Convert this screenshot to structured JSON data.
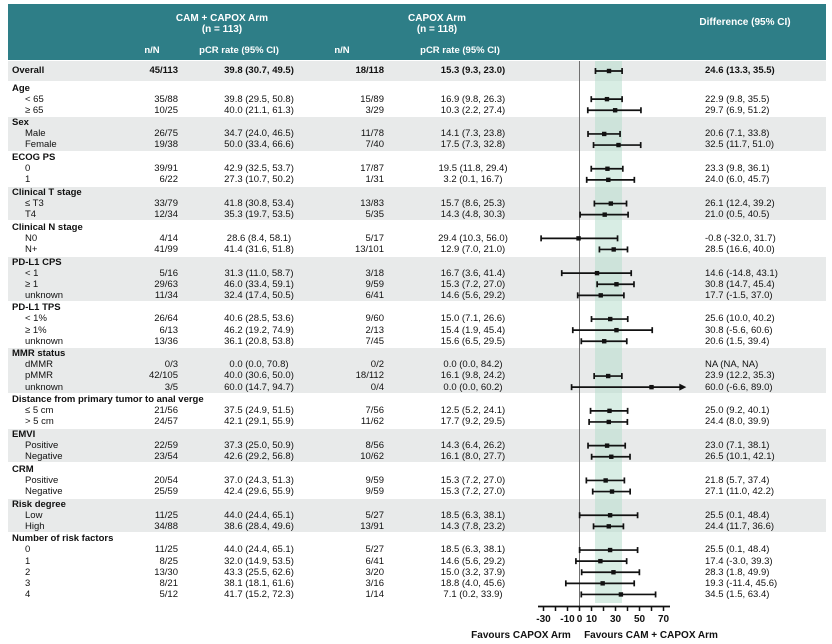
{
  "header": {
    "arm1_title": "CAM + CAPOX Arm",
    "arm1_n": "(n = 113)",
    "arm2_title": "CAPOX Arm",
    "arm2_n": "(n = 118)",
    "diff_title": "Difference (95% CI)",
    "nn_label": "n/N",
    "pcr_label": "pCR rate (95% CI)"
  },
  "colors": {
    "header_teal": "#2e7e87",
    "row_shade": "#e8eaea",
    "overall_band": "#b2dbca",
    "zero_line": "#707070",
    "bar": "#111111"
  },
  "chart_data": {
    "type": "forest",
    "x_axis": {
      "min": -30,
      "max": 70,
      "ticks": [
        -30,
        -20,
        -10,
        0,
        10,
        20,
        30,
        40,
        50,
        60,
        70
      ],
      "labeled_ticks": [
        -30,
        -10,
        0,
        10,
        30,
        50,
        70
      ],
      "zero_line": 0,
      "overall_band": [
        13.3,
        35.5
      ]
    },
    "favours_left": "Favours CAPOX Arm",
    "favours_right": "Favours CAM + CAPOX Arm",
    "overall": {
      "label": "Overall",
      "nN1": "45/113",
      "pcr1": "39.8 (30.7, 49.5)",
      "nN2": "18/118",
      "pcr2": "15.3 (9.3, 23.0)",
      "diff": "24.6 (13.3, 35.5)",
      "est": 24.6,
      "lo": 13.3,
      "hi": 35.5
    },
    "groups": [
      {
        "label": "Age",
        "shaded": false,
        "items": [
          {
            "label": "< 65",
            "nN1": "35/88",
            "pcr1": "39.8 (29.5, 50.8)",
            "nN2": "15/89",
            "pcr2": "16.9 (9.8, 26.3)",
            "diff": "22.9 (9.8, 35.5)",
            "est": 22.9,
            "lo": 9.8,
            "hi": 35.5
          },
          {
            "label": "≥ 65",
            "nN1": "10/25",
            "pcr1": "40.0 (21.1, 61.3)",
            "nN2": "3/29",
            "pcr2": "10.3 (2.2, 27.4)",
            "diff": "29.7 (6.9, 51.2)",
            "est": 29.7,
            "lo": 6.9,
            "hi": 51.2
          }
        ]
      },
      {
        "label": "Sex",
        "shaded": true,
        "items": [
          {
            "label": "Male",
            "nN1": "26/75",
            "pcr1": "34.7 (24.0, 46.5)",
            "nN2": "11/78",
            "pcr2": "14.1 (7.3, 23.8)",
            "diff": "20.6 (7.1, 33.8)",
            "est": 20.6,
            "lo": 7.1,
            "hi": 33.8
          },
          {
            "label": "Female",
            "nN1": "19/38",
            "pcr1": "50.0 (33.4, 66.6)",
            "nN2": "7/40",
            "pcr2": "17.5 (7.3, 32.8)",
            "diff": "32.5 (11.7, 51.0)",
            "est": 32.5,
            "lo": 11.7,
            "hi": 51.0
          }
        ]
      },
      {
        "label": "ECOG PS",
        "shaded": false,
        "items": [
          {
            "label": "0",
            "nN1": "39/91",
            "pcr1": "42.9 (32.5, 53.7)",
            "nN2": "17/87",
            "pcr2": "19.5 (11.8, 29.4)",
            "diff": "23.3 (9.8, 36.1)",
            "est": 23.3,
            "lo": 9.8,
            "hi": 36.1
          },
          {
            "label": "1",
            "nN1": "6/22",
            "pcr1": "27.3 (10.7, 50.2)",
            "nN2": "1/31",
            "pcr2": "3.2 (0.1, 16.7)",
            "diff": "24.0 (6.0, 45.7)",
            "est": 24.0,
            "lo": 6.0,
            "hi": 45.7
          }
        ]
      },
      {
        "label": "Clinical T stage",
        "shaded": true,
        "items": [
          {
            "label": "≤ T3",
            "nN1": "33/79",
            "pcr1": "41.8 (30.8, 53.4)",
            "nN2": "13/83",
            "pcr2": "15.7 (8.6, 25.3)",
            "diff": "26.1 (12.4, 39.2)",
            "est": 26.1,
            "lo": 12.4,
            "hi": 39.2
          },
          {
            "label": "T4",
            "nN1": "12/34",
            "pcr1": "35.3 (19.7, 53.5)",
            "nN2": "5/35",
            "pcr2": "14.3 (4.8, 30.3)",
            "diff": "21.0 (0.5, 40.5)",
            "est": 21.0,
            "lo": 0.5,
            "hi": 40.5
          }
        ]
      },
      {
        "label": "Clinical N stage",
        "shaded": false,
        "items": [
          {
            "label": "N0",
            "nN1": "4/14",
            "pcr1": "28.6 (8.4, 58.1)",
            "nN2": "5/17",
            "pcr2": "29.4 (10.3, 56.0)",
            "diff": "-0.8 (-32.0, 31.7)",
            "est": -0.8,
            "lo": -32.0,
            "hi": 31.7
          },
          {
            "label": "N+",
            "nN1": "41/99",
            "pcr1": "41.4 (31.6, 51.8)",
            "nN2": "13/101",
            "pcr2": "12.9 (7.0, 21.0)",
            "diff": "28.5 (16.6, 40.0)",
            "est": 28.5,
            "lo": 16.6,
            "hi": 40.0
          }
        ]
      },
      {
        "label": "PD-L1 CPS",
        "shaded": true,
        "items": [
          {
            "label": "< 1",
            "nN1": "5/16",
            "pcr1": "31.3 (11.0, 58.7)",
            "nN2": "3/18",
            "pcr2": "16.7 (3.6, 41.4)",
            "diff": "14.6 (-14.8, 43.1)",
            "est": 14.6,
            "lo": -14.8,
            "hi": 43.1
          },
          {
            "label": "≥ 1",
            "nN1": "29/63",
            "pcr1": "46.0 (33.4, 59.1)",
            "nN2": "9/59",
            "pcr2": "15.3 (7.2, 27.0)",
            "diff": "30.8 (14.7, 45.4)",
            "est": 30.8,
            "lo": 14.7,
            "hi": 45.4
          },
          {
            "label": "unknown",
            "nN1": "11/34",
            "pcr1": "32.4 (17.4, 50.5)",
            "nN2": "6/41",
            "pcr2": "14.6 (5.6, 29.2)",
            "diff": "17.7 (-1.5, 37.0)",
            "est": 17.7,
            "lo": -1.5,
            "hi": 37.0
          }
        ]
      },
      {
        "label": "PD-L1 TPS",
        "shaded": false,
        "items": [
          {
            "label": "< 1%",
            "nN1": "26/64",
            "pcr1": "40.6 (28.5, 53.6)",
            "nN2": "9/60",
            "pcr2": "15.0 (7.1, 26.6)",
            "diff": "25.6 (10.0, 40.2)",
            "est": 25.6,
            "lo": 10.0,
            "hi": 40.2
          },
          {
            "label": "≥ 1%",
            "nN1": "6/13",
            "pcr1": "46.2 (19.2, 74.9)",
            "nN2": "2/13",
            "pcr2": "15.4 (1.9, 45.4)",
            "diff": "30.8 (-5.6, 60.6)",
            "est": 30.8,
            "lo": -5.6,
            "hi": 60.6
          },
          {
            "label": "unknown",
            "nN1": "13/36",
            "pcr1": "36.1 (20.8, 53.8)",
            "nN2": "7/45",
            "pcr2": "15.6 (6.5, 29.5)",
            "diff": "20.6 (1.5, 39.4)",
            "est": 20.6,
            "lo": 1.5,
            "hi": 39.4
          }
        ]
      },
      {
        "label": "MMR status",
        "shaded": true,
        "items": [
          {
            "label": "dMMR",
            "nN1": "0/3",
            "pcr1": "0.0 (0.0, 70.8)",
            "nN2": "0/2",
            "pcr2": "0.0 (0.0, 84.2)",
            "diff": "NA (NA, NA)",
            "est": null,
            "lo": null,
            "hi": null
          },
          {
            "label": "pMMR",
            "nN1": "42/105",
            "pcr1": "40.0 (30.6, 50.0)",
            "nN2": "18/112",
            "pcr2": "16.1 (9.8, 24.2)",
            "diff": "23.9 (12.2, 35.3)",
            "est": 23.9,
            "lo": 12.2,
            "hi": 35.3
          },
          {
            "label": "unknown",
            "nN1": "3/5",
            "pcr1": "60.0 (14.7, 94.7)",
            "nN2": "0/4",
            "pcr2": "0.0 (0.0, 60.2)",
            "diff": "60.0 (-6.6, 89.0)",
            "est": 60.0,
            "lo": -6.6,
            "hi": 89.0,
            "arrow_right": true
          }
        ]
      },
      {
        "label": "Distance from primary tumor to anal verge",
        "shaded": false,
        "items": [
          {
            "label": "≤ 5 cm",
            "nN1": "21/56",
            "pcr1": "37.5 (24.9, 51.5)",
            "nN2": "7/56",
            "pcr2": "12.5 (5.2, 24.1)",
            "diff": "25.0 (9.2, 40.1)",
            "est": 25.0,
            "lo": 9.2,
            "hi": 40.1
          },
          {
            "label": "> 5 cm",
            "nN1": "24/57",
            "pcr1": "42.1 (29.1, 55.9)",
            "nN2": "11/62",
            "pcr2": "17.7 (9.2, 29.5)",
            "diff": "24.4 (8.0, 39.9)",
            "est": 24.4,
            "lo": 8.0,
            "hi": 39.9
          }
        ]
      },
      {
        "label": "EMVI",
        "shaded": true,
        "items": [
          {
            "label": "Positive",
            "nN1": "22/59",
            "pcr1": "37.3 (25.0, 50.9)",
            "nN2": "8/56",
            "pcr2": "14.3 (6.4, 26.2)",
            "diff": "23.0 (7.1, 38.1)",
            "est": 23.0,
            "lo": 7.1,
            "hi": 38.1
          },
          {
            "label": "Negative",
            "nN1": "23/54",
            "pcr1": "42.6 (29.2, 56.8)",
            "nN2": "10/62",
            "pcr2": "16.1 (8.0, 27.7)",
            "diff": "26.5 (10.1, 42.1)",
            "est": 26.5,
            "lo": 10.1,
            "hi": 42.1
          }
        ]
      },
      {
        "label": "CRM",
        "shaded": false,
        "items": [
          {
            "label": "Positive",
            "nN1": "20/54",
            "pcr1": "37.0 (24.3, 51.3)",
            "nN2": "9/59",
            "pcr2": "15.3 (7.2, 27.0)",
            "diff": "21.8 (5.7, 37.4)",
            "est": 21.8,
            "lo": 5.7,
            "hi": 37.4
          },
          {
            "label": "Negative",
            "nN1": "25/59",
            "pcr1": "42.4 (29.6, 55.9)",
            "nN2": "9/59",
            "pcr2": "15.3 (7.2, 27.0)",
            "diff": "27.1 (11.0, 42.2)",
            "est": 27.1,
            "lo": 11.0,
            "hi": 42.2
          }
        ]
      },
      {
        "label": "Risk degree",
        "shaded": true,
        "items": [
          {
            "label": "Low",
            "nN1": "11/25",
            "pcr1": "44.0 (24.4, 65.1)",
            "nN2": "5/27",
            "pcr2": "18.5 (6.3, 38.1)",
            "diff": "25.5 (0.1, 48.4)",
            "est": 25.5,
            "lo": 0.1,
            "hi": 48.4
          },
          {
            "label": "High",
            "nN1": "34/88",
            "pcr1": "38.6 (28.4, 49.6)",
            "nN2": "13/91",
            "pcr2": "14.3 (7.8, 23.2)",
            "diff": "24.4 (11.7, 36.6)",
            "est": 24.4,
            "lo": 11.7,
            "hi": 36.6
          }
        ]
      },
      {
        "label": "Number of risk factors",
        "shaded": false,
        "items": [
          {
            "label": "0",
            "nN1": "11/25",
            "pcr1": "44.0 (24.4, 65.1)",
            "nN2": "5/27",
            "pcr2": "18.5 (6.3, 38.1)",
            "diff": "25.5 (0.1, 48.4)",
            "est": 25.5,
            "lo": 0.1,
            "hi": 48.4
          },
          {
            "label": "1",
            "nN1": "8/25",
            "pcr1": "32.0 (14.9, 53.5)",
            "nN2": "6/41",
            "pcr2": "14.6 (5.6, 29.2)",
            "diff": "17.4 (-3.0, 39.3)",
            "est": 17.4,
            "lo": -3.0,
            "hi": 39.3
          },
          {
            "label": "2",
            "nN1": "13/30",
            "pcr1": "43.3 (25.5, 62.6)",
            "nN2": "3/20",
            "pcr2": "15.0 (3.2, 37.9)",
            "diff": "28.3 (1.8, 49.9)",
            "est": 28.3,
            "lo": 1.8,
            "hi": 49.9
          },
          {
            "label": "3",
            "nN1": "8/21",
            "pcr1": "38.1 (18.1, 61.6)",
            "nN2": "3/16",
            "pcr2": "18.8 (4.0, 45.6)",
            "diff": "19.3 (-11.4, 45.6)",
            "est": 19.3,
            "lo": -11.4,
            "hi": 45.6
          },
          {
            "label": "4",
            "nN1": "5/12",
            "pcr1": "41.7 (15.2, 72.3)",
            "nN2": "1/14",
            "pcr2": "7.1 (0.2, 33.9)",
            "diff": "34.5 (1.5, 63.4)",
            "est": 34.5,
            "lo": 1.5,
            "hi": 63.4
          }
        ]
      }
    ]
  }
}
